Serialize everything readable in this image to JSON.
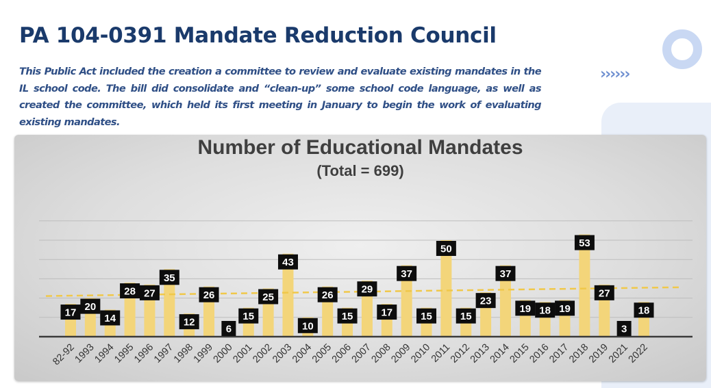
{
  "slide": {
    "title": "PA 104-0391 Mandate Reduction Council",
    "description": "This Public Act included the creation a committee to review and evaluate existing mandates in the IL school code. The bill did consolidate and “clean-up” some school code language, as well as created the committee, which held its first meeting in January to begin the work of evaluating existing mandates.",
    "arrows": "››››››"
  },
  "colors": {
    "title": "#1a3a6b",
    "description": "#2f4f86",
    "bar": "#f3d57a",
    "label_bg": "#0d0d0d",
    "trendline": "#f0c84a"
  },
  "chart_data": {
    "type": "bar",
    "title": "Number of Educational Mandates",
    "subtitle": "(Total = 699)",
    "categories": [
      "82-92",
      "1993",
      "1994",
      "1995",
      "1996",
      "1997",
      "1998",
      "1999",
      "2000",
      "2001",
      "2002",
      "2003",
      "2004",
      "2005",
      "2006",
      "2007",
      "2008",
      "2009",
      "2010",
      "2011",
      "2012",
      "2013",
      "2014",
      "2015",
      "2016",
      "2017",
      "2018",
      "2019",
      "2021",
      "2022"
    ],
    "values": [
      17,
      20,
      14,
      28,
      27,
      35,
      12,
      26,
      6,
      15,
      25,
      43,
      10,
      26,
      15,
      29,
      17,
      37,
      15,
      50,
      15,
      23,
      37,
      19,
      18,
      19,
      53,
      27,
      3,
      18
    ],
    "ylim": [
      0,
      60
    ],
    "grid": true,
    "trendline": "linear, dashed"
  }
}
